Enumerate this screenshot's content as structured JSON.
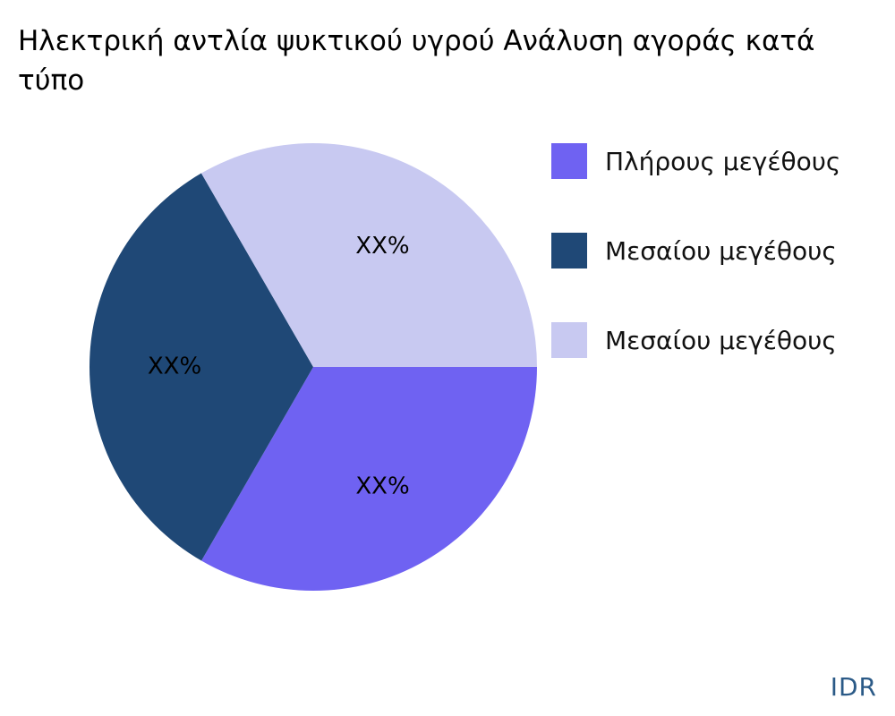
{
  "chart_data": {
    "type": "pie",
    "title_lines": [
      "Ηλεκτρική αντλία ψυκτικού υγρού Ανάλυση αγοράς κατά",
      "τύπο"
    ],
    "slices": [
      {
        "name": "Πλήρους μεγέθους",
        "value": 33.33,
        "label": "XX%",
        "color": "#6f62f2"
      },
      {
        "name": "Μεσαίου μεγέθους",
        "value": 33.33,
        "label": "XX%",
        "color": "#1f4876"
      },
      {
        "name": "Μεσαίου μεγέθους",
        "value": 33.34,
        "label": "XX%",
        "color": "#c8c9f1"
      }
    ],
    "legend_position": "right"
  },
  "watermark": "IDR"
}
